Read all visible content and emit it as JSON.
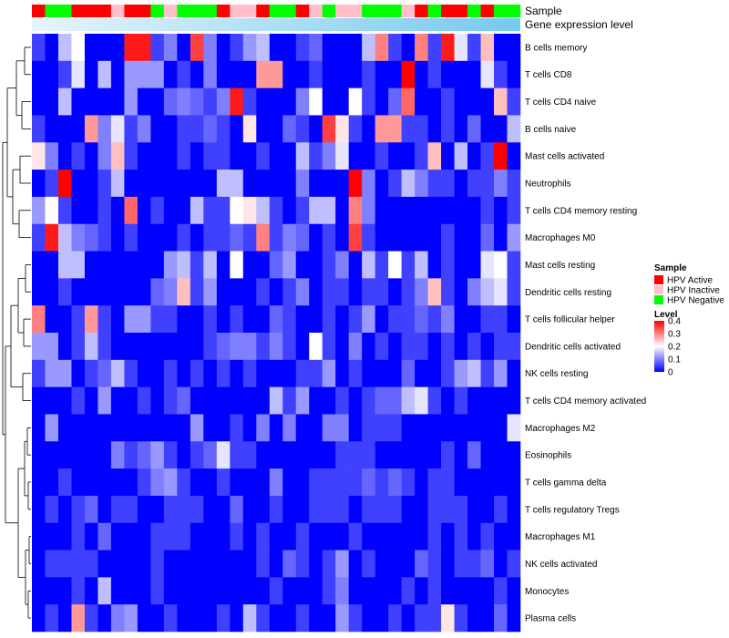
{
  "chart_data": {
    "type": "heatmap",
    "annotations": {
      "sample_title": "Sample",
      "gene_title": "Gene expression level"
    },
    "legend": {
      "sample": {
        "title": "Sample",
        "entries": [
          {
            "label": "HPV Active",
            "color": "#ff0000"
          },
          {
            "label": "HPV Inactive",
            "color": "#ffc0cb"
          },
          {
            "label": "HPV Negative",
            "color": "#00ff00"
          }
        ]
      },
      "level": {
        "title": "Level",
        "ticks": [
          "0.4",
          "0.3",
          "0.2",
          "0.1",
          "0"
        ],
        "range": [
          0,
          0.4
        ],
        "colors": {
          "low": "#0000ff",
          "mid": "#ffffff",
          "high": "#ff0000"
        }
      }
    },
    "sample_groups": [
      "A",
      "N",
      "N",
      "A",
      "A",
      "A",
      "I",
      "A",
      "A",
      "N",
      "I",
      "N",
      "N",
      "N",
      "A",
      "I",
      "I",
      "A",
      "N",
      "N",
      "A",
      "I",
      "N",
      "I",
      "I",
      "N",
      "N",
      "N",
      "I",
      "A",
      "N",
      "A",
      "A",
      "N",
      "A",
      "N",
      "N"
    ],
    "rows": [
      {
        "label": "B cells memory",
        "values": [
          0.05,
          0.0,
          0.15,
          0.2,
          0.0,
          0.0,
          0.0,
          0.38,
          0.38,
          0.05,
          0.1,
          0.0,
          0.35,
          0.1,
          0.0,
          0.05,
          0.12,
          0.15,
          0.0,
          0.0,
          0.05,
          0.08,
          0.0,
          0.0,
          0.0,
          0.15,
          0.3,
          0.05,
          0.0,
          0.3,
          0.05,
          0.38,
          0.18,
          0.05,
          0.25,
          0.0,
          0.0
        ]
      },
      {
        "label": "T cells CD8",
        "values": [
          0.0,
          0.0,
          0.05,
          0.18,
          0.0,
          0.15,
          0.0,
          0.12,
          0.12,
          0.12,
          0.0,
          0.05,
          0.0,
          0.1,
          0.0,
          0.0,
          0.0,
          0.28,
          0.28,
          0.0,
          0.0,
          0.05,
          0.0,
          0.0,
          0.0,
          0.05,
          0.0,
          0.0,
          0.4,
          0.0,
          0.05,
          0.0,
          0.0,
          0.0,
          0.18,
          0.05,
          0.0
        ]
      },
      {
        "label": "T cells CD4 naive",
        "values": [
          0.0,
          0.0,
          0.15,
          0.0,
          0.0,
          0.0,
          0.0,
          0.12,
          0.0,
          0.0,
          0.08,
          0.1,
          0.08,
          0.05,
          0.1,
          0.38,
          0.05,
          0.0,
          0.0,
          0.0,
          0.1,
          0.2,
          0.0,
          0.0,
          0.2,
          0.05,
          0.0,
          0.08,
          0.32,
          0.0,
          0.0,
          0.05,
          0.0,
          0.0,
          0.0,
          0.25,
          0.05
        ]
      },
      {
        "label": "B cells naive",
        "values": [
          0.05,
          0.0,
          0.0,
          0.0,
          0.28,
          0.1,
          0.18,
          0.05,
          0.1,
          0.0,
          0.0,
          0.05,
          0.05,
          0.08,
          0.05,
          0.0,
          0.22,
          0.0,
          0.0,
          0.08,
          0.05,
          0.0,
          0.35,
          0.22,
          0.05,
          0.0,
          0.28,
          0.28,
          0.05,
          0.05,
          0.0,
          0.05,
          0.0,
          0.08,
          0.0,
          0.0,
          0.15
        ]
      },
      {
        "label": "Mast cells activated",
        "values": [
          0.22,
          0.1,
          0.0,
          0.05,
          0.0,
          0.1,
          0.25,
          0.05,
          0.0,
          0.0,
          0.0,
          0.05,
          0.0,
          0.05,
          0.05,
          0.0,
          0.0,
          0.05,
          0.0,
          0.0,
          0.15,
          0.05,
          0.1,
          0.18,
          0.0,
          0.0,
          0.05,
          0.0,
          0.0,
          0.05,
          0.25,
          0.0,
          0.15,
          0.0,
          0.05,
          0.4,
          0.0
        ]
      },
      {
        "label": "Neutrophils",
        "values": [
          0.0,
          0.05,
          0.4,
          0.0,
          0.0,
          0.05,
          0.15,
          0.0,
          0.0,
          0.0,
          0.0,
          0.0,
          0.0,
          0.0,
          0.15,
          0.15,
          0.0,
          0.0,
          0.0,
          0.0,
          0.1,
          0.0,
          0.0,
          0.0,
          0.4,
          0.1,
          0.0,
          0.05,
          0.15,
          0.1,
          0.05,
          0.05,
          0.0,
          0.05,
          0.05,
          0.1,
          0.05
        ]
      },
      {
        "label": "T cells CD4 memory resting",
        "values": [
          0.12,
          0.2,
          0.05,
          0.0,
          0.0,
          0.05,
          0.0,
          0.32,
          0.0,
          0.05,
          0.0,
          0.0,
          0.15,
          0.05,
          0.05,
          0.2,
          0.22,
          0.15,
          0.05,
          0.0,
          0.05,
          0.15,
          0.15,
          0.0,
          0.3,
          0.1,
          0.0,
          0.0,
          0.0,
          0.0,
          0.0,
          0.0,
          0.0,
          0.0,
          0.05,
          0.0,
          0.05
        ]
      },
      {
        "label": "Macrophages M0",
        "values": [
          0.05,
          0.38,
          0.15,
          0.1,
          0.08,
          0.05,
          0.0,
          0.05,
          0.0,
          0.0,
          0.0,
          0.05,
          0.0,
          0.05,
          0.05,
          0.08,
          0.05,
          0.3,
          0.05,
          0.1,
          0.08,
          0.0,
          0.05,
          0.0,
          0.35,
          0.05,
          0.0,
          0.0,
          0.0,
          0.0,
          0.0,
          0.05,
          0.0,
          0.0,
          0.08,
          0.0,
          0.12
        ]
      },
      {
        "label": "Mast cells resting",
        "values": [
          0.0,
          0.0,
          0.15,
          0.15,
          0.0,
          0.0,
          0.0,
          0.0,
          0.0,
          0.0,
          0.12,
          0.15,
          0.05,
          0.15,
          0.0,
          0.2,
          0.0,
          0.0,
          0.08,
          0.12,
          0.0,
          0.0,
          0.05,
          0.1,
          0.0,
          0.15,
          0.05,
          0.2,
          0.05,
          0.15,
          0.0,
          0.05,
          0.0,
          0.0,
          0.18,
          0.2,
          0.05
        ]
      },
      {
        "label": "Dendritic cells resting",
        "values": [
          0.0,
          0.0,
          0.05,
          0.0,
          0.0,
          0.0,
          0.0,
          0.0,
          0.0,
          0.08,
          0.1,
          0.25,
          0.05,
          0.12,
          0.0,
          0.0,
          0.0,
          0.05,
          0.0,
          0.05,
          0.1,
          0.0,
          0.05,
          0.05,
          0.0,
          0.05,
          0.05,
          0.0,
          0.05,
          0.1,
          0.25,
          0.05,
          0.0,
          0.1,
          0.15,
          0.18,
          0.05
        ]
      },
      {
        "label": "T cells follicular helper",
        "values": [
          0.3,
          0.0,
          0.0,
          0.05,
          0.28,
          0.05,
          0.0,
          0.12,
          0.12,
          0.05,
          0.05,
          0.0,
          0.0,
          0.05,
          0.0,
          0.05,
          0.0,
          0.0,
          0.08,
          0.05,
          0.0,
          0.0,
          0.05,
          0.0,
          0.05,
          0.12,
          0.0,
          0.05,
          0.05,
          0.08,
          0.05,
          0.1,
          0.0,
          0.0,
          0.05,
          0.05,
          0.0
        ]
      },
      {
        "label": "Dendritic cells activated",
        "values": [
          0.12,
          0.12,
          0.0,
          0.05,
          0.15,
          0.05,
          0.0,
          0.0,
          0.0,
          0.0,
          0.0,
          0.0,
          0.0,
          0.05,
          0.08,
          0.1,
          0.1,
          0.05,
          0.1,
          0.05,
          0.0,
          0.2,
          0.05,
          0.0,
          0.1,
          0.0,
          0.05,
          0.0,
          0.05,
          0.05,
          0.0,
          0.05,
          0.0,
          0.05,
          0.0,
          0.05,
          0.05
        ]
      },
      {
        "label": "NK cells resting",
        "values": [
          0.05,
          0.12,
          0.12,
          0.0,
          0.05,
          0.08,
          0.15,
          0.05,
          0.0,
          0.0,
          0.05,
          0.0,
          0.05,
          0.0,
          0.05,
          0.0,
          0.05,
          0.0,
          0.0,
          0.0,
          0.05,
          0.05,
          0.12,
          0.0,
          0.05,
          0.0,
          0.0,
          0.0,
          0.08,
          0.0,
          0.0,
          0.05,
          0.12,
          0.15,
          0.05,
          0.12,
          0.0
        ]
      },
      {
        "label": "T cells CD4 memory activated",
        "values": [
          0.0,
          0.0,
          0.0,
          0.05,
          0.0,
          0.12,
          0.0,
          0.0,
          0.05,
          0.0,
          0.05,
          0.08,
          0.0,
          0.0,
          0.0,
          0.0,
          0.0,
          0.0,
          0.15,
          0.05,
          0.12,
          0.0,
          0.0,
          0.05,
          0.0,
          0.05,
          0.08,
          0.08,
          0.15,
          0.18,
          0.05,
          0.0,
          0.05,
          0.0,
          0.0,
          0.0,
          0.0
        ]
      },
      {
        "label": "Macrophages M2",
        "values": [
          0.0,
          0.12,
          0.0,
          0.0,
          0.0,
          0.0,
          0.0,
          0.0,
          0.0,
          0.0,
          0.0,
          0.0,
          0.12,
          0.0,
          0.0,
          0.05,
          0.0,
          0.1,
          0.0,
          0.1,
          0.0,
          0.0,
          0.1,
          0.1,
          0.0,
          0.05,
          0.05,
          0.05,
          0.0,
          0.0,
          0.0,
          0.0,
          0.0,
          0.0,
          0.0,
          0.0,
          0.18
        ]
      },
      {
        "label": "Eosinophils",
        "values": [
          0.0,
          0.0,
          0.0,
          0.0,
          0.0,
          0.0,
          0.1,
          0.05,
          0.08,
          0.12,
          0.05,
          0.0,
          0.05,
          0.08,
          0.18,
          0.05,
          0.05,
          0.0,
          0.0,
          0.0,
          0.0,
          0.0,
          0.0,
          0.05,
          0.05,
          0.05,
          0.0,
          0.0,
          0.0,
          0.0,
          0.0,
          0.05,
          0.0,
          0.08,
          0.0,
          0.0,
          0.0
        ]
      },
      {
        "label": "T cells gamma delta",
        "values": [
          0.0,
          0.0,
          0.05,
          0.0,
          0.0,
          0.0,
          0.0,
          0.0,
          0.05,
          0.1,
          0.12,
          0.05,
          0.0,
          0.0,
          0.05,
          0.0,
          0.0,
          0.0,
          0.1,
          0.0,
          0.0,
          0.05,
          0.05,
          0.05,
          0.05,
          0.08,
          0.05,
          0.08,
          0.05,
          0.0,
          0.05,
          0.05,
          0.0,
          0.0,
          0.0,
          0.0,
          0.0
        ]
      },
      {
        "label": "T cells regulatory  Tregs",
        "values": [
          0.0,
          0.05,
          0.0,
          0.05,
          0.08,
          0.0,
          0.05,
          0.05,
          0.0,
          0.0,
          0.05,
          0.05,
          0.05,
          0.0,
          0.0,
          0.08,
          0.0,
          0.0,
          0.05,
          0.0,
          0.0,
          0.05,
          0.05,
          0.05,
          0.0,
          0.05,
          0.05,
          0.05,
          0.0,
          0.0,
          0.05,
          0.05,
          0.05,
          0.0,
          0.0,
          0.05,
          0.0
        ]
      },
      {
        "label": "Macrophages M1",
        "values": [
          0.0,
          0.0,
          0.0,
          0.05,
          0.0,
          0.08,
          0.0,
          0.0,
          0.0,
          0.05,
          0.05,
          0.05,
          0.0,
          0.0,
          0.0,
          0.05,
          0.0,
          0.05,
          0.0,
          0.0,
          0.05,
          0.0,
          0.0,
          0.0,
          0.05,
          0.0,
          0.0,
          0.0,
          0.0,
          0.0,
          0.05,
          0.0,
          0.05,
          0.0,
          0.05,
          0.0,
          0.0
        ]
      },
      {
        "label": "NK cells activated",
        "values": [
          0.0,
          0.05,
          0.05,
          0.05,
          0.05,
          0.0,
          0.0,
          0.0,
          0.0,
          0.05,
          0.0,
          0.0,
          0.0,
          0.0,
          0.0,
          0.0,
          0.0,
          0.05,
          0.0,
          0.08,
          0.05,
          0.0,
          0.05,
          0.12,
          0.0,
          0.05,
          0.0,
          0.0,
          0.0,
          0.08,
          0.05,
          0.0,
          0.05,
          0.05,
          0.08,
          0.0,
          0.05
        ]
      },
      {
        "label": "Monocytes",
        "values": [
          0.0,
          0.0,
          0.0,
          0.05,
          0.0,
          0.15,
          0.0,
          0.0,
          0.0,
          0.05,
          0.0,
          0.0,
          0.0,
          0.0,
          0.0,
          0.0,
          0.0,
          0.0,
          0.05,
          0.0,
          0.0,
          0.0,
          0.05,
          0.1,
          0.0,
          0.0,
          0.0,
          0.0,
          0.05,
          0.0,
          0.05,
          0.0,
          0.0,
          0.0,
          0.0,
          0.05,
          0.0
        ]
      },
      {
        "label": "Plasma cells",
        "values": [
          0.0,
          0.05,
          0.0,
          0.28,
          0.05,
          0.0,
          0.1,
          0.12,
          0.0,
          0.0,
          0.05,
          0.0,
          0.0,
          0.0,
          0.05,
          0.0,
          0.15,
          0.05,
          0.0,
          0.0,
          0.05,
          0.0,
          0.0,
          0.12,
          0.05,
          0.0,
          0.0,
          0.05,
          0.0,
          0.05,
          0.05,
          0.22,
          0.05,
          0.0,
          0.0,
          0.08,
          0.0
        ]
      }
    ]
  }
}
